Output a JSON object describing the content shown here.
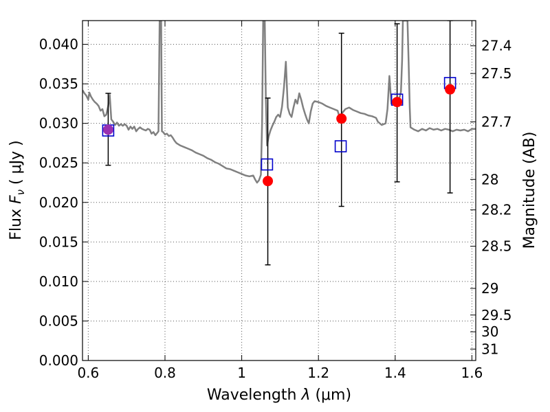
{
  "chart_data": {
    "type": "scatter",
    "xlabel": "Wavelength",
    "xlabel_symbol": "λ",
    "xlabel_unit": "(μm)",
    "ylabel": "Flux",
    "ylabel_symbol": "F",
    "ylabel_subscript": "ν",
    "ylabel_unit": "( μJy )",
    "y2label": "Magnitude (AB)",
    "xlim": [
      0.585,
      1.61
    ],
    "ylim": [
      0.0,
      0.043
    ],
    "grid": true,
    "x_ticks": [
      {
        "value": 0.6,
        "label": "0.6"
      },
      {
        "value": 0.8,
        "label": "0.8"
      },
      {
        "value": 1.0,
        "label": "1"
      },
      {
        "value": 1.2,
        "label": "1.2"
      },
      {
        "value": 1.4,
        "label": "1.4"
      },
      {
        "value": 1.6,
        "label": "1.6"
      }
    ],
    "y_ticks": [
      {
        "value": 0.0,
        "label": "0.000"
      },
      {
        "value": 0.005,
        "label": "0.005"
      },
      {
        "value": 0.01,
        "label": "0.010"
      },
      {
        "value": 0.015,
        "label": "0.015"
      },
      {
        "value": 0.02,
        "label": "0.020"
      },
      {
        "value": 0.025,
        "label": "0.025"
      },
      {
        "value": 0.03,
        "label": "0.030"
      },
      {
        "value": 0.035,
        "label": "0.035"
      },
      {
        "value": 0.04,
        "label": "0.040"
      }
    ],
    "y2_ticks": [
      {
        "mag": 27.4,
        "label": "27.4"
      },
      {
        "mag": 27.5,
        "label": "27.5"
      },
      {
        "mag": 27.7,
        "label": "27.7"
      },
      {
        "mag": 28.0,
        "label": "28"
      },
      {
        "mag": 28.2,
        "label": "28.2"
      },
      {
        "mag": 28.5,
        "label": "28.5"
      },
      {
        "mag": 29.0,
        "label": "29"
      },
      {
        "mag": 29.5,
        "label": "29.5"
      },
      {
        "mag": 30.0,
        "label": "30"
      },
      {
        "mag": 31.0,
        "label": "31"
      }
    ],
    "series": [
      {
        "kind": "line",
        "color": "#808080",
        "points": [
          [
            0.585,
            0.0342
          ],
          [
            0.59,
            0.0338
          ],
          [
            0.595,
            0.0335
          ],
          [
            0.6,
            0.033
          ],
          [
            0.603,
            0.0339
          ],
          [
            0.607,
            0.0334
          ],
          [
            0.612,
            0.033
          ],
          [
            0.617,
            0.0327
          ],
          [
            0.622,
            0.0325
          ],
          [
            0.627,
            0.0322
          ],
          [
            0.632,
            0.0316
          ],
          [
            0.637,
            0.0318
          ],
          [
            0.642,
            0.0309
          ],
          [
            0.647,
            0.0311
          ],
          [
            0.652,
            0.0322
          ],
          [
            0.656,
            0.0336
          ],
          [
            0.66,
            0.0305
          ],
          [
            0.665,
            0.0302
          ],
          [
            0.67,
            0.0298
          ],
          [
            0.675,
            0.0301
          ],
          [
            0.68,
            0.0297
          ],
          [
            0.685,
            0.0299
          ],
          [
            0.69,
            0.0297
          ],
          [
            0.695,
            0.0299
          ],
          [
            0.7,
            0.0297
          ],
          [
            0.705,
            0.0292
          ],
          [
            0.71,
            0.0296
          ],
          [
            0.715,
            0.0293
          ],
          [
            0.72,
            0.0296
          ],
          [
            0.725,
            0.029
          ],
          [
            0.73,
            0.0293
          ],
          [
            0.735,
            0.0295
          ],
          [
            0.74,
            0.0293
          ],
          [
            0.745,
            0.0292
          ],
          [
            0.75,
            0.0291
          ],
          [
            0.755,
            0.0293
          ],
          [
            0.76,
            0.0292
          ],
          [
            0.765,
            0.0287
          ],
          [
            0.77,
            0.0289
          ],
          [
            0.775,
            0.0285
          ],
          [
            0.78,
            0.0288
          ],
          [
            0.783,
            0.029
          ],
          [
            0.786,
            0.043
          ],
          [
            0.79,
            0.043
          ],
          [
            0.792,
            0.029
          ],
          [
            0.795,
            0.0289
          ],
          [
            0.8,
            0.0286
          ],
          [
            0.805,
            0.0287
          ],
          [
            0.81,
            0.0284
          ],
          [
            0.815,
            0.0285
          ],
          [
            0.82,
            0.0282
          ],
          [
            0.825,
            0.0278
          ],
          [
            0.83,
            0.0275
          ],
          [
            0.84,
            0.0272
          ],
          [
            0.85,
            0.027
          ],
          [
            0.86,
            0.0268
          ],
          [
            0.87,
            0.0266
          ],
          [
            0.88,
            0.0263
          ],
          [
            0.89,
            0.0261
          ],
          [
            0.9,
            0.0259
          ],
          [
            0.91,
            0.0256
          ],
          [
            0.92,
            0.0254
          ],
          [
            0.93,
            0.0251
          ],
          [
            0.94,
            0.0249
          ],
          [
            0.95,
            0.0246
          ],
          [
            0.96,
            0.0243
          ],
          [
            0.97,
            0.0242
          ],
          [
            0.98,
            0.024
          ],
          [
            0.99,
            0.0238
          ],
          [
            1.0,
            0.0236
          ],
          [
            1.01,
            0.0234
          ],
          [
            1.02,
            0.0233
          ],
          [
            1.03,
            0.0234
          ],
          [
            1.035,
            0.0229
          ],
          [
            1.04,
            0.0225
          ],
          [
            1.045,
            0.0228
          ],
          [
            1.05,
            0.0235
          ],
          [
            1.053,
            0.03
          ],
          [
            1.056,
            0.043
          ],
          [
            1.06,
            0.043
          ],
          [
            1.063,
            0.033
          ],
          [
            1.066,
            0.0272
          ],
          [
            1.07,
            0.0283
          ],
          [
            1.075,
            0.0291
          ],
          [
            1.08,
            0.0297
          ],
          [
            1.085,
            0.0302
          ],
          [
            1.09,
            0.0308
          ],
          [
            1.095,
            0.0311
          ],
          [
            1.1,
            0.0308
          ],
          [
            1.105,
            0.0321
          ],
          [
            1.11,
            0.0345
          ],
          [
            1.115,
            0.0378
          ],
          [
            1.12,
            0.032
          ],
          [
            1.125,
            0.0312
          ],
          [
            1.13,
            0.0308
          ],
          [
            1.135,
            0.032
          ],
          [
            1.14,
            0.033
          ],
          [
            1.145,
            0.0325
          ],
          [
            1.15,
            0.0338
          ],
          [
            1.155,
            0.033
          ],
          [
            1.16,
            0.032
          ],
          [
            1.165,
            0.0312
          ],
          [
            1.17,
            0.0305
          ],
          [
            1.175,
            0.03
          ],
          [
            1.18,
            0.0315
          ],
          [
            1.185,
            0.0325
          ],
          [
            1.19,
            0.0328
          ],
          [
            1.2,
            0.0327
          ],
          [
            1.21,
            0.0325
          ],
          [
            1.22,
            0.0322
          ],
          [
            1.23,
            0.032
          ],
          [
            1.24,
            0.0318
          ],
          [
            1.25,
            0.0316
          ],
          [
            1.255,
            0.0308
          ],
          [
            1.26,
            0.0312
          ],
          [
            1.27,
            0.0318
          ],
          [
            1.28,
            0.032
          ],
          [
            1.29,
            0.0317
          ],
          [
            1.3,
            0.0315
          ],
          [
            1.31,
            0.0313
          ],
          [
            1.32,
            0.0312
          ],
          [
            1.33,
            0.031
          ],
          [
            1.34,
            0.0309
          ],
          [
            1.35,
            0.0307
          ],
          [
            1.355,
            0.0302
          ],
          [
            1.365,
            0.0298
          ],
          [
            1.375,
            0.03
          ],
          [
            1.38,
            0.0318
          ],
          [
            1.385,
            0.036
          ],
          [
            1.39,
            0.0325
          ],
          [
            1.395,
            0.0328
          ],
          [
            1.4,
            0.0325
          ],
          [
            1.405,
            0.0328
          ],
          [
            1.41,
            0.033
          ],
          [
            1.415,
            0.034
          ],
          [
            1.418,
            0.038
          ],
          [
            1.42,
            0.043
          ],
          [
            1.432,
            0.043
          ],
          [
            1.435,
            0.038
          ],
          [
            1.438,
            0.032
          ],
          [
            1.44,
            0.0295
          ],
          [
            1.45,
            0.0292
          ],
          [
            1.46,
            0.029
          ],
          [
            1.47,
            0.0293
          ],
          [
            1.48,
            0.0291
          ],
          [
            1.49,
            0.0294
          ],
          [
            1.5,
            0.0292
          ],
          [
            1.51,
            0.0293
          ],
          [
            1.52,
            0.0291
          ],
          [
            1.53,
            0.0293
          ],
          [
            1.54,
            0.0292
          ],
          [
            1.55,
            0.029
          ],
          [
            1.56,
            0.0292
          ],
          [
            1.57,
            0.0291
          ],
          [
            1.58,
            0.0292
          ],
          [
            1.59,
            0.029
          ],
          [
            1.6,
            0.0293
          ],
          [
            1.61,
            0.0293
          ]
        ]
      },
      {
        "kind": "points",
        "marker": "circle",
        "color": "#ff0000",
        "points": [
          {
            "x": 0.652,
            "y": 0.0292,
            "yerr_low": 0.0247,
            "yerr_high": 0.0338,
            "color": "#9b30b0"
          },
          {
            "x": 1.068,
            "y": 0.0227,
            "yerr_low": 0.0121,
            "yerr_high": 0.0332
          },
          {
            "x": 1.26,
            "y": 0.0306,
            "yerr_low": 0.0195,
            "yerr_high": 0.0414
          },
          {
            "x": 1.405,
            "y": 0.0327,
            "yerr_low": 0.0226,
            "yerr_high": 0.0426
          },
          {
            "x": 1.543,
            "y": 0.0343,
            "yerr_low": 0.0212,
            "yerr_high": 0.043
          }
        ]
      },
      {
        "kind": "points",
        "marker": "open-square",
        "color": "#0000cc",
        "points": [
          {
            "x": 0.652,
            "y": 0.0291
          },
          {
            "x": 1.066,
            "y": 0.0248
          },
          {
            "x": 1.258,
            "y": 0.0271
          },
          {
            "x": 1.405,
            "y": 0.033
          },
          {
            "x": 1.543,
            "y": 0.0351
          }
        ]
      }
    ]
  }
}
